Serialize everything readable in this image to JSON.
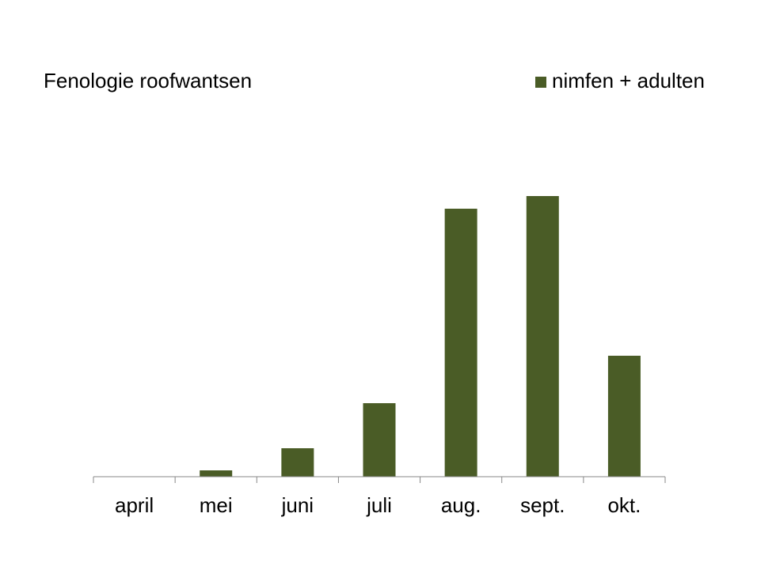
{
  "chart_data": {
    "type": "bar",
    "title": "Fenologie roofwantsen",
    "categories": [
      "april",
      "mei",
      "juni",
      "juli",
      "aug.",
      "sept.",
      "okt."
    ],
    "series": [
      {
        "name": "nimfen + adulten",
        "color": "#4a5c26",
        "values": [
          0,
          8,
          36,
          93,
          339,
          355,
          153
        ]
      }
    ],
    "ylim": [
      0,
      400
    ],
    "legend": "top-right"
  }
}
